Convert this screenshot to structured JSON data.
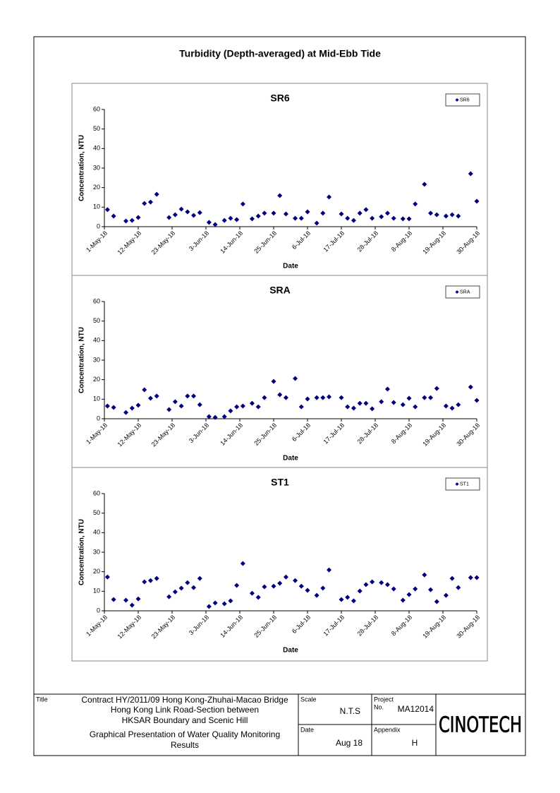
{
  "title": "Turbidity (Depth-averaged) at Mid-Ebb Tide",
  "chart_data": [
    {
      "type": "scatter",
      "title": "SR6",
      "xlabel": "Date",
      "ylabel": "Concentration, NTU",
      "legend": "upper right",
      "x": [
        "2018-05-02",
        "2018-05-04",
        "2018-05-08",
        "2018-05-10",
        "2018-05-12",
        "2018-05-14",
        "2018-05-16",
        "2018-05-18",
        "2018-05-22",
        "2018-05-24",
        "2018-05-26",
        "2018-05-28",
        "2018-05-30",
        "2018-06-01",
        "2018-06-04",
        "2018-06-06",
        "2018-06-09",
        "2018-06-11",
        "2018-06-13",
        "2018-06-15",
        "2018-06-18",
        "2018-06-20",
        "2018-06-22",
        "2018-06-25",
        "2018-06-27",
        "2018-06-29",
        "2018-07-02",
        "2018-07-04",
        "2018-07-06",
        "2018-07-09",
        "2018-07-11",
        "2018-07-13",
        "2018-07-17",
        "2018-07-19",
        "2018-07-21",
        "2018-07-23",
        "2018-07-25",
        "2018-07-27",
        "2018-07-30",
        "2018-08-01",
        "2018-08-03",
        "2018-08-06",
        "2018-08-08",
        "2018-08-10",
        "2018-08-13",
        "2018-08-15",
        "2018-08-17",
        "2018-08-20",
        "2018-08-22",
        "2018-08-24",
        "2018-08-28",
        "2018-08-30"
      ],
      "series": [
        {
          "name": "SR6",
          "color": "#000080",
          "values": [
            8.7,
            5.4,
            2.9,
            3.2,
            4.7,
            11.9,
            12.6,
            16.6,
            4.7,
            6.1,
            9.0,
            7.6,
            5.8,
            7.2,
            2.2,
            1.1,
            3.2,
            4.3,
            3.6,
            11.6,
            4.0,
            5.4,
            6.9,
            6.9,
            15.9,
            6.5,
            4.3,
            4.3,
            7.6,
            1.8,
            6.9,
            15.2,
            6.5,
            4.3,
            3.2,
            6.9,
            8.7,
            4.3,
            5.1,
            6.9,
            4.3,
            4.0,
            4.0,
            11.6,
            21.7,
            6.9,
            6.1,
            5.4,
            6.1,
            5.4,
            27.1,
            13.0
          ]
        }
      ],
      "xlim": [
        "2018-05-01",
        "2018-08-30"
      ],
      "xticks": [
        {
          "value": "2018-05-01",
          "label": "1-May-18"
        },
        {
          "value": "2018-05-12",
          "label": "12-May-18"
        },
        {
          "value": "2018-05-23",
          "label": "23-May-18"
        },
        {
          "value": "2018-06-03",
          "label": "3-Jun-18"
        },
        {
          "value": "2018-06-14",
          "label": "14-Jun-18"
        },
        {
          "value": "2018-06-25",
          "label": "25-Jun-18"
        },
        {
          "value": "2018-07-06",
          "label": "6-Jul-18"
        },
        {
          "value": "2018-07-17",
          "label": "17-Jul-18"
        },
        {
          "value": "2018-07-28",
          "label": "28-Jul-18"
        },
        {
          "value": "2018-08-08",
          "label": "8-Aug-18"
        },
        {
          "value": "2018-08-19",
          "label": "19-Aug-18"
        },
        {
          "value": "2018-08-30",
          "label": "30-Aug-18"
        }
      ],
      "ylim": [
        0,
        60
      ],
      "yticks": [
        0,
        10,
        20,
        30,
        40,
        50,
        60
      ]
    },
    {
      "type": "scatter",
      "title": "SRA",
      "xlabel": "Date",
      "ylabel": "Concentration, NTU",
      "legend": "upper right",
      "x": [
        "2018-05-02",
        "2018-05-04",
        "2018-05-08",
        "2018-05-10",
        "2018-05-12",
        "2018-05-14",
        "2018-05-16",
        "2018-05-18",
        "2018-05-22",
        "2018-05-24",
        "2018-05-26",
        "2018-05-28",
        "2018-05-30",
        "2018-06-01",
        "2018-06-04",
        "2018-06-06",
        "2018-06-09",
        "2018-06-11",
        "2018-06-13",
        "2018-06-15",
        "2018-06-18",
        "2018-06-20",
        "2018-06-22",
        "2018-06-25",
        "2018-06-27",
        "2018-06-29",
        "2018-07-02",
        "2018-07-04",
        "2018-07-06",
        "2018-07-09",
        "2018-07-11",
        "2018-07-13",
        "2018-07-17",
        "2018-07-19",
        "2018-07-21",
        "2018-07-23",
        "2018-07-25",
        "2018-07-27",
        "2018-07-30",
        "2018-08-01",
        "2018-08-03",
        "2018-08-06",
        "2018-08-08",
        "2018-08-10",
        "2018-08-13",
        "2018-08-15",
        "2018-08-17",
        "2018-08-20",
        "2018-08-22",
        "2018-08-24",
        "2018-08-28",
        "2018-08-30"
      ],
      "series": [
        {
          "name": "SRA",
          "color": "#000080",
          "values": [
            6.5,
            5.8,
            3.2,
            5.4,
            6.9,
            14.8,
            10.5,
            11.6,
            4.7,
            8.7,
            6.5,
            11.6,
            11.6,
            7.2,
            1.1,
            0.7,
            1.1,
            4.0,
            6.1,
            6.5,
            7.9,
            6.1,
            10.8,
            19.1,
            12.3,
            10.8,
            20.6,
            6.1,
            10.1,
            10.8,
            10.8,
            11.2,
            10.8,
            6.1,
            5.4,
            7.9,
            7.9,
            5.1,
            8.7,
            15.2,
            8.3,
            7.2,
            10.5,
            6.1,
            10.8,
            10.8,
            15.5,
            6.5,
            5.4,
            7.2,
            16.2,
            9.4
          ]
        }
      ],
      "xlim": [
        "2018-05-01",
        "2018-08-30"
      ],
      "xticks": [
        {
          "value": "2018-05-01",
          "label": "1-May-18"
        },
        {
          "value": "2018-05-12",
          "label": "12-May-18"
        },
        {
          "value": "2018-05-23",
          "label": "23-May-18"
        },
        {
          "value": "2018-06-03",
          "label": "3-Jun-18"
        },
        {
          "value": "2018-06-14",
          "label": "14-Jun-18"
        },
        {
          "value": "2018-06-25",
          "label": "25-Jun-18"
        },
        {
          "value": "2018-07-06",
          "label": "6-Jul-18"
        },
        {
          "value": "2018-07-17",
          "label": "17-Jul-18"
        },
        {
          "value": "2018-07-28",
          "label": "28-Jul-18"
        },
        {
          "value": "2018-08-08",
          "label": "8-Aug-18"
        },
        {
          "value": "2018-08-19",
          "label": "19-Aug-18"
        },
        {
          "value": "2018-08-30",
          "label": "30-Aug-18"
        }
      ],
      "ylim": [
        0,
        60
      ],
      "yticks": [
        0,
        10,
        20,
        30,
        40,
        50,
        60
      ]
    },
    {
      "type": "scatter",
      "title": "ST1",
      "xlabel": "Date",
      "ylabel": "Concentration, NTU",
      "legend": "upper right",
      "x": [
        "2018-05-02",
        "2018-05-04",
        "2018-05-08",
        "2018-05-10",
        "2018-05-12",
        "2018-05-14",
        "2018-05-16",
        "2018-05-18",
        "2018-05-22",
        "2018-05-24",
        "2018-05-26",
        "2018-05-28",
        "2018-05-30",
        "2018-06-01",
        "2018-06-04",
        "2018-06-06",
        "2018-06-09",
        "2018-06-11",
        "2018-06-13",
        "2018-06-15",
        "2018-06-18",
        "2018-06-20",
        "2018-06-22",
        "2018-06-25",
        "2018-06-27",
        "2018-06-29",
        "2018-07-02",
        "2018-07-04",
        "2018-07-06",
        "2018-07-09",
        "2018-07-11",
        "2018-07-13",
        "2018-07-17",
        "2018-07-19",
        "2018-07-21",
        "2018-07-23",
        "2018-07-25",
        "2018-07-27",
        "2018-07-30",
        "2018-08-01",
        "2018-08-03",
        "2018-08-06",
        "2018-08-08",
        "2018-08-10",
        "2018-08-13",
        "2018-08-15",
        "2018-08-17",
        "2018-08-20",
        "2018-08-22",
        "2018-08-24",
        "2018-08-28",
        "2018-08-30"
      ],
      "series": [
        {
          "name": "ST1",
          "color": "#000080",
          "values": [
            17.3,
            5.8,
            5.4,
            2.9,
            6.1,
            14.8,
            15.5,
            16.6,
            7.2,
            9.7,
            11.6,
            14.4,
            11.9,
            16.6,
            2.2,
            4.0,
            3.6,
            5.1,
            13.0,
            24.2,
            9.0,
            6.9,
            12.3,
            12.6,
            14.1,
            17.3,
            15.5,
            12.6,
            10.5,
            7.9,
            11.6,
            20.9,
            5.8,
            6.9,
            5.1,
            10.1,
            13.4,
            14.8,
            14.4,
            13.4,
            11.2,
            5.4,
            8.3,
            11.2,
            18.4,
            10.8,
            4.7,
            7.9,
            16.6,
            11.9,
            17.0,
            17.0
          ]
        }
      ],
      "xlim": [
        "2018-05-01",
        "2018-08-30"
      ],
      "xticks": [
        {
          "value": "2018-05-01",
          "label": "1-May-18"
        },
        {
          "value": "2018-05-12",
          "label": "12-May-18"
        },
        {
          "value": "2018-05-23",
          "label": "23-May-18"
        },
        {
          "value": "2018-06-03",
          "label": "3-Jun-18"
        },
        {
          "value": "2018-06-14",
          "label": "14-Jun-18"
        },
        {
          "value": "2018-06-25",
          "label": "25-Jun-18"
        },
        {
          "value": "2018-07-06",
          "label": "6-Jul-18"
        },
        {
          "value": "2018-07-17",
          "label": "17-Jul-18"
        },
        {
          "value": "2018-07-28",
          "label": "28-Jul-18"
        },
        {
          "value": "2018-08-08",
          "label": "8-Aug-18"
        },
        {
          "value": "2018-08-19",
          "label": "19-Aug-18"
        },
        {
          "value": "2018-08-30",
          "label": "30-Aug-18"
        }
      ],
      "ylim": [
        0,
        60
      ],
      "yticks": [
        0,
        10,
        20,
        30,
        40,
        50,
        60
      ]
    }
  ],
  "footer": {
    "title_label": "Title",
    "title_lines": [
      "Contract HY/2011/09 Hong Kong-Zhuhai-Macao Bridge",
      "Hong Kong Link Road-Section between",
      "HKSAR Boundary and Scenic Hill",
      "Graphical Presentation of Water Quality Monitoring",
      "Results"
    ],
    "scale_label": "Scale",
    "scale": "N.T.S",
    "project_label": "Project",
    "project_no_label": "No.",
    "project_no": "MA12014",
    "date_label": "Date",
    "date": "Aug 18",
    "appendix_label": "Appendix",
    "appendix": "H",
    "logo": "CINOTECH"
  }
}
